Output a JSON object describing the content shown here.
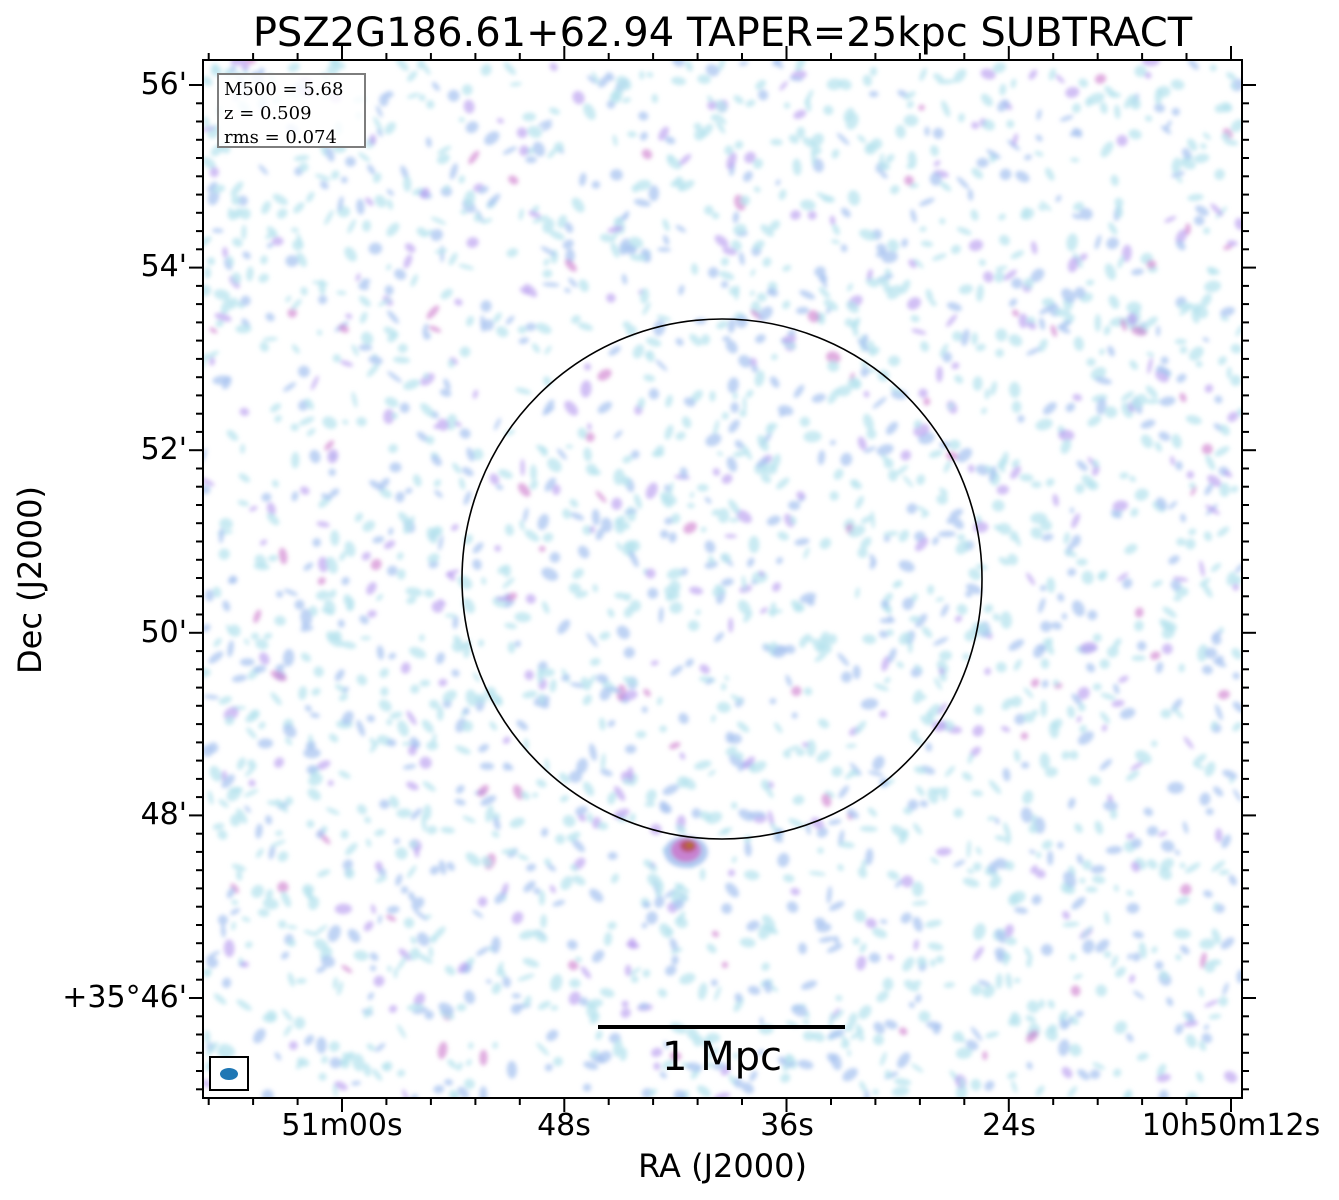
{
  "chart_data": {
    "type": "heatmap",
    "title": "PSZ2G186.61+62.94 TAPER=25kpc SUBTRACT",
    "xlabel": "RA (J2000)",
    "ylabel": "Dec (J2000)",
    "x_tick_labels": [
      "51m00s",
      "48s",
      "36s",
      "24s",
      "10h50m12s"
    ],
    "y_tick_labels": [
      "56'",
      "54'",
      "52'",
      "50'",
      "48'",
      "+35°46'"
    ],
    "y_tick_values_arcmin": [
      56,
      54,
      52,
      50,
      48,
      46
    ],
    "info": [
      "M500 = 5.68",
      "z = 0.509",
      "rms = 0.074"
    ],
    "scale_bar_label": "1 Mpc",
    "beam_color": "#1f77b4",
    "colormap": [
      "#b7e3ee",
      "#a9c4f0",
      "#b89cf0",
      "#cc77cc",
      "#b84a5a",
      "#b5751a"
    ],
    "circle_color": "#000000",
    "grid": false
  }
}
